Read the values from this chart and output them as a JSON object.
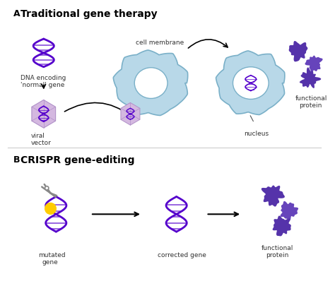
{
  "bg_color": "#ffffff",
  "title_A": "Traditional gene therapy",
  "title_B": "CRISPR gene-editing",
  "label_A": "A",
  "label_B": "B",
  "dna_color": "#5500cc",
  "cell_color": "#b8d8e8",
  "viral_color": "#d4b8e0",
  "protein_color": "#6633aa",
  "scissors_color": "#888888",
  "mutation_color": "#ffcc00",
  "label_fontsize": 8,
  "title_fontsize": 10,
  "section_label_fontsize": 9
}
